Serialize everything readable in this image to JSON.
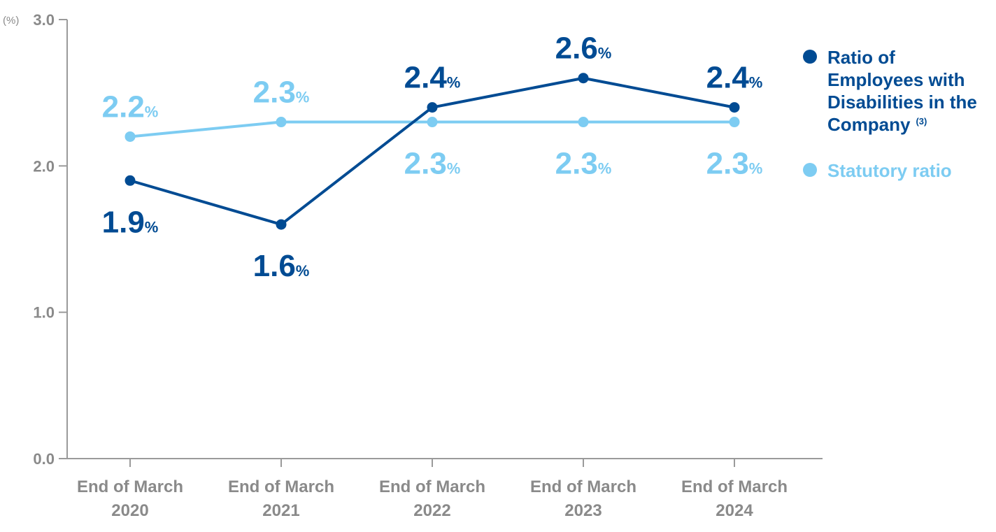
{
  "colors": {
    "company": "#004B93",
    "statutory": "#7DCCF2",
    "axis": "#9a9a9a",
    "text_gray": "#8a8a8a"
  },
  "chart_data": {
    "type": "line",
    "y_unit_label": "(%)",
    "ylim": [
      0,
      3.0
    ],
    "yticks": [
      "0.0",
      "1.0",
      "2.0",
      "3.0"
    ],
    "categories": [
      [
        "End of March",
        "2020"
      ],
      [
        "End of March",
        "2021"
      ],
      [
        "End of March",
        "2022"
      ],
      [
        "End of March",
        "2023"
      ],
      [
        "End of March",
        "2024"
      ]
    ],
    "series": [
      {
        "name": "Ratio of Employees with Disabilities in the Company",
        "legend_lines": [
          "Ratio of",
          "Employees with",
          "Disabilities in the",
          "Company"
        ],
        "legend_superscript": "(3)",
        "color": "#004B93",
        "values": [
          1.9,
          1.6,
          2.4,
          2.6,
          2.4
        ],
        "labels": [
          "1.9",
          "1.6",
          "2.4",
          "2.6",
          "2.4"
        ],
        "label_positions": [
          "below",
          "below",
          "above",
          "above",
          "above"
        ]
      },
      {
        "name": "Statutory ratio",
        "legend_lines": [
          "Statutory ratio"
        ],
        "color": "#7DCCF2",
        "values": [
          2.2,
          2.3,
          2.3,
          2.3,
          2.3
        ],
        "labels": [
          "2.2",
          "2.3",
          "2.3",
          "2.3",
          "2.3"
        ],
        "label_positions": [
          "above",
          "above",
          "below",
          "below",
          "below"
        ]
      }
    ],
    "percent_suffix": "%",
    "grid": false,
    "legend_position": "right"
  }
}
